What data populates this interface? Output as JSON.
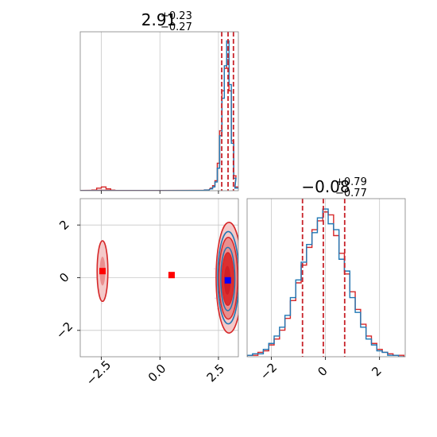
{
  "colors": {
    "red": "#d62728",
    "red_dark": "#c8232a",
    "blue": "#1f77b4",
    "grid": "#c8c8c8",
    "marker_blue": "#0000ff",
    "marker_red": "#ff0000",
    "fill_light": "#f4c9c9",
    "fill_mid": "#ea8f8f",
    "fill_dark": "#dc3030"
  },
  "chart_data": {
    "type": "corner",
    "panels": {
      "hist_x": {
        "title": {
          "value": "2.91",
          "plus": "+0.23",
          "minus": "−0.27"
        },
        "xlim": [
          -3.4,
          3.35
        ],
        "quantiles": [
          2.64,
          2.91,
          3.14
        ],
        "bins_x": [
          -2.8,
          -2.6,
          -2.4,
          -2.2,
          -2.0,
          -1.8,
          1.8,
          2.0,
          2.2,
          2.3,
          2.4,
          2.5,
          2.6,
          2.7,
          2.8,
          2.9,
          3.0,
          3.1,
          3.2,
          3.3
        ],
        "series": [
          {
            "name": "",
            "color": "red",
            "values": [
              0.5,
              2,
              3,
              1.5,
              0.4,
              0.2,
              0.3,
              0.6,
              2,
              4,
              8,
              22,
              48,
              80,
              98,
              105,
              80,
              40,
              12,
              3
            ]
          },
          {
            "name": "",
            "color": "blue",
            "values": [
              0,
              0,
              0,
              0,
              0,
              0,
              0.2,
              0.5,
              1.5,
              3,
              7,
              18,
              44,
              74,
              100,
              120,
              85,
              38,
              10,
              2
            ]
          }
        ]
      },
      "hist_y": {
        "title": {
          "value": "−0.08",
          "plus": "+0.79",
          "minus": "−0.77"
        },
        "xlim": [
          -2.9,
          2.95
        ],
        "xticks": [
          "−2",
          "0",
          "2"
        ],
        "quantiles": [
          -0.85,
          -0.08,
          0.71
        ],
        "x": [
          -2.8,
          -2.6,
          -2.4,
          -2.2,
          -2.0,
          -1.8,
          -1.6,
          -1.4,
          -1.2,
          -1.0,
          -0.8,
          -0.6,
          -0.4,
          -0.2,
          0.0,
          0.2,
          0.4,
          0.6,
          0.8,
          1.0,
          1.2,
          1.4,
          1.6,
          1.8,
          2.0,
          2.2,
          2.4,
          2.6,
          2.8
        ],
        "series": [
          {
            "name": "",
            "color": "red",
            "values": [
              1,
              1,
              3,
              4,
              8,
              12,
              18,
              26,
              38,
              50,
              62,
              74,
              86,
              92,
              98,
              96,
              82,
              70,
              56,
              44,
              32,
              22,
              14,
              9,
              5,
              3,
              2,
              1,
              1
            ]
          },
          {
            "name": "",
            "color": "blue",
            "values": [
              1,
              2,
              2,
              5,
              9,
              14,
              20,
              28,
              40,
              52,
              64,
              76,
              84,
              94,
              100,
              90,
              86,
              66,
              58,
              40,
              30,
              20,
              12,
              8,
              4,
              3,
              1,
              1,
              0
            ]
          }
        ]
      },
      "scatter_2d": {
        "xlim": [
          -3.4,
          3.35
        ],
        "ylim": [
          -3.0,
          3.0
        ],
        "xticks": [
          "−2.5",
          "0.0",
          "2.5"
        ],
        "yticks": [
          "−2",
          "0",
          "2"
        ],
        "markers": [
          {
            "color": "marker_red",
            "x": -2.45,
            "y": 0.25
          },
          {
            "color": "marker_red",
            "x": 0.5,
            "y": 0.1
          },
          {
            "color": "marker_blue",
            "x": 2.9,
            "y": -0.1
          }
        ]
      }
    }
  }
}
